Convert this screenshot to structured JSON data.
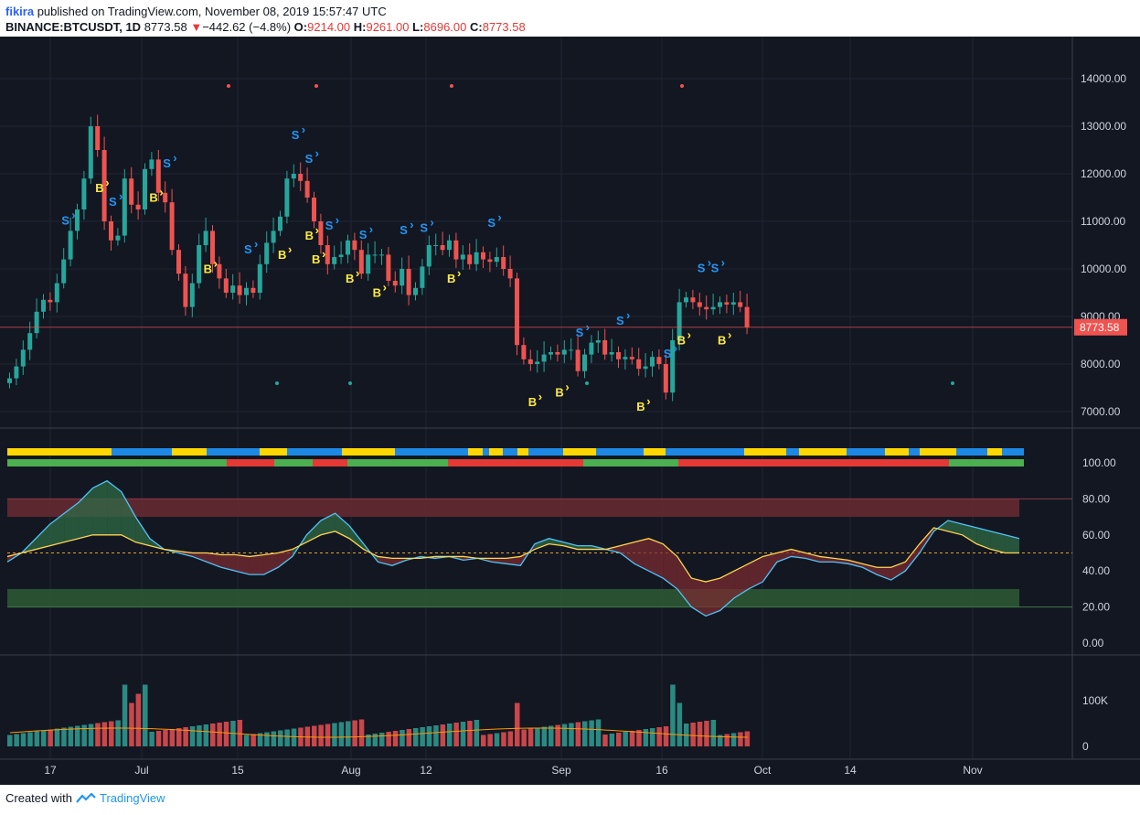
{
  "header": {
    "author": "fikira",
    "published_text": " published on TradingView.com, November 08, 2019 15:57:47 UTC",
    "symbol": "BINANCE:BTCUSDT, 1D",
    "last": "8773.58",
    "change": "−442.62 (−4.8%)",
    "o_label": "O:",
    "o_val": "9214.00",
    "h_label": "H:",
    "h_val": "9261.00",
    "l_label": "L:",
    "l_val": "8696.00",
    "c_label": "C:",
    "c_val": "8773.58"
  },
  "footer": {
    "created_with": "Created with",
    "brand": "TradingView"
  },
  "colors": {
    "background": "#131722",
    "up": "#26a69a",
    "down": "#ef5350",
    "signal_buy": "#ffeb3b",
    "signal_sell": "#2196f3",
    "price_line": "#ef5350",
    "band_yellow": "#ffd700",
    "band_blue": "#1e88e5",
    "band_green": "#4caf50",
    "band_red": "#e53935"
  },
  "price_label": "8773.58",
  "chart_data": [
    {
      "type": "candlestick",
      "y_ticks": [
        "14000.00",
        "13000.00",
        "12000.00",
        "11000.00",
        "10000.00",
        "9000.00",
        "8000.00",
        "7000.00"
      ],
      "ylim": [
        6650,
        14500
      ],
      "x_ticks": [
        "17",
        "Jul",
        "15",
        "Aug",
        "12",
        "Sep",
        "16",
        "Oct",
        "14",
        "Nov"
      ],
      "close": [
        7700,
        7950,
        8300,
        8650,
        9100,
        9350,
        9300,
        9700,
        10200,
        10800,
        11250,
        11900,
        13000,
        12500,
        11000,
        10600,
        10700,
        11900,
        11350,
        11250,
        12100,
        12300,
        11600,
        11400,
        10400,
        9900,
        9200,
        9700,
        10500,
        10800,
        10100,
        9800,
        9500,
        9650,
        9450,
        9600,
        9500,
        10100,
        10550,
        10800,
        11100,
        11900,
        12000,
        11850,
        11500,
        11000,
        10500,
        10100,
        10250,
        10300,
        10600,
        10400,
        9900,
        10300,
        10300,
        10300,
        9750,
        9650,
        10000,
        9450,
        9600,
        10050,
        10500,
        10500,
        10400,
        10600,
        10200,
        10300,
        10100,
        10350,
        10200,
        10150,
        10250,
        10000,
        9800,
        8400,
        8100,
        8000,
        8050,
        8200,
        8250,
        8200,
        8300,
        8300,
        7850,
        8200,
        8450,
        8500,
        8200,
        8250,
        8100,
        8150,
        8100,
        7900,
        7950,
        8150,
        8000,
        7400,
        8500,
        9300,
        9400,
        9300,
        9200,
        9150,
        9200,
        9300,
        9250,
        9300,
        9200,
        8774
      ],
      "rsi_blue": [
        45,
        50,
        58,
        66,
        72,
        78,
        86,
        90,
        84,
        70,
        58,
        52,
        50,
        48,
        45,
        42,
        40,
        38,
        38,
        42,
        48,
        60,
        68,
        72,
        65,
        55,
        45,
        43,
        46,
        48,
        47,
        48,
        46,
        47,
        45,
        44,
        43,
        55,
        58,
        56,
        54,
        54,
        52,
        50,
        44,
        40,
        36,
        30,
        20,
        15,
        18,
        25,
        30,
        34,
        45,
        48,
        47,
        45,
        45,
        44,
        42,
        38,
        35,
        40,
        50,
        62,
        68,
        66,
        64,
        62,
        60,
        58
      ],
      "rsi_orange": [
        48,
        50,
        52,
        54,
        56,
        58,
        60,
        60,
        60,
        56,
        54,
        52,
        51,
        50,
        50,
        49,
        49,
        48,
        49,
        50,
        52,
        56,
        60,
        62,
        58,
        52,
        48,
        47,
        47,
        47,
        48,
        48,
        48,
        47,
        47,
        47,
        48,
        52,
        55,
        54,
        52,
        52,
        52,
        54,
        56,
        58,
        55,
        48,
        36,
        34,
        36,
        40,
        44,
        48,
        50,
        52,
        50,
        48,
        47,
        46,
        44,
        42,
        42,
        45,
        55,
        64,
        62,
        60,
        55,
        52,
        50,
        50
      ],
      "rsi_ticks": [
        "100.00",
        "80.00",
        "60.00",
        "40.00",
        "20.00",
        "0.00"
      ],
      "volume_ticks": [
        "100K",
        "0"
      ],
      "signals": [
        {
          "t": "S",
          "i": 13
        },
        {
          "t": "S",
          "i": 24
        },
        {
          "t": "B",
          "i": 20
        },
        {
          "t": "B",
          "i": 33
        },
        {
          "t": "S",
          "i": 36
        },
        {
          "t": "B",
          "i": 46
        },
        {
          "t": "S",
          "i": 54
        },
        {
          "t": "B",
          "i": 63
        },
        {
          "t": "S",
          "i": 65
        },
        {
          "t": "B",
          "i": 68
        },
        {
          "t": "S",
          "i": 69
        },
        {
          "t": "B",
          "i": 70
        },
        {
          "t": "S",
          "i": 74
        },
        {
          "t": "B",
          "i": 78
        },
        {
          "t": "S",
          "i": 81
        },
        {
          "t": "B",
          "i": 84
        },
        {
          "t": "S",
          "i": 90
        },
        {
          "t": "S",
          "i": 95
        },
        {
          "t": "B",
          "i": 102
        },
        {
          "t": "S",
          "i": 110
        },
        {
          "t": "B",
          "i": 120
        },
        {
          "t": "B",
          "i": 127
        },
        {
          "t": "S",
          "i": 131
        },
        {
          "t": "S",
          "i": 140
        },
        {
          "t": "B",
          "i": 145
        },
        {
          "t": "S",
          "i": 152
        },
        {
          "t": "B",
          "i": 155
        },
        {
          "t": "S",
          "i": 159
        },
        {
          "t": "S",
          "i": 162
        },
        {
          "t": "B",
          "i": 164
        }
      ]
    }
  ]
}
